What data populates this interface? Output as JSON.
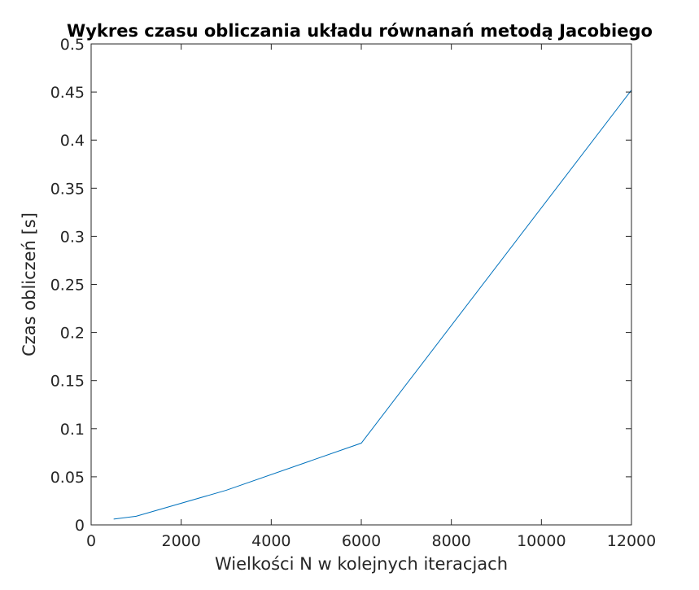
{
  "chart_data": {
    "type": "line",
    "title": "Wykres czasu obliczania układu równanań metodą Jacobiego",
    "xlabel": "Wielkości N w kolejnych iteracjach",
    "ylabel": "Czas obliczeń [s]",
    "xlim": [
      0,
      12000
    ],
    "ylim": [
      0,
      0.5
    ],
    "xticks": [
      0,
      2000,
      4000,
      6000,
      8000,
      10000,
      12000
    ],
    "xtick_labels": [
      "0",
      "2000",
      "4000",
      "6000",
      "8000",
      "10000",
      "12000"
    ],
    "yticks": [
      0,
      0.05,
      0.1,
      0.15,
      0.2,
      0.25,
      0.3,
      0.35,
      0.4,
      0.45,
      0.5
    ],
    "ytick_labels": [
      "0",
      "0.05",
      "0.1",
      "0.15",
      "0.2",
      "0.25",
      "0.3",
      "0.35",
      "0.4",
      "0.45",
      "0.5"
    ],
    "grid": false,
    "series": [
      {
        "color": "#0072BD",
        "x": [
          500,
          1000,
          3000,
          6000,
          12000
        ],
        "y": [
          0.006,
          0.009,
          0.036,
          0.085,
          0.452
        ]
      }
    ]
  }
}
